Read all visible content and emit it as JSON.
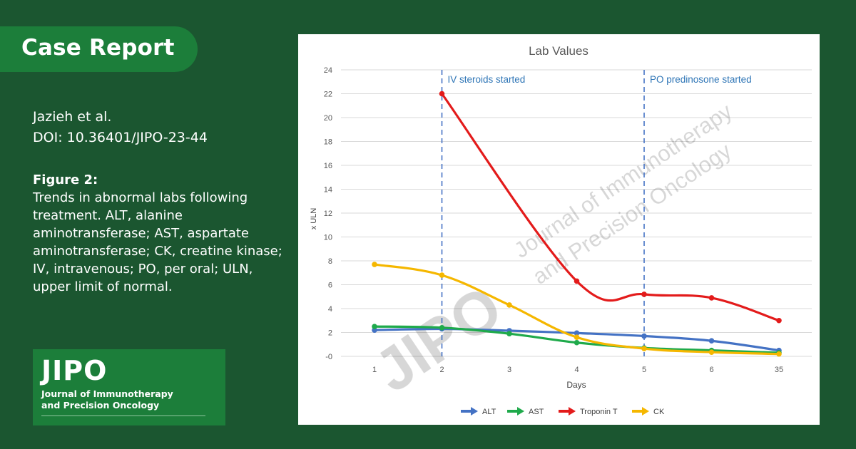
{
  "badge": {
    "label": "Case Report"
  },
  "citation": {
    "authors": "Jazieh et al.",
    "doi": "DOI: 10.36401/JIPO-23-44"
  },
  "figure": {
    "title": "Figure 2:",
    "caption": "Trends in abnormal labs following treatment. ALT, alanine aminotransferase; AST, aspartate aminotransferase; CK, creatine kinase; IV, intravenous; PO, per oral; ULN, upper limit of normal."
  },
  "logo": {
    "acronym": "JIPO",
    "line1": "Journal of Immunotherapy",
    "line2": "and Precision Oncology"
  },
  "watermark": {
    "acronym": "JIPO",
    "line1": "Journal of Immunotherapy",
    "line2": "and Precision Oncology"
  },
  "chart_data": {
    "type": "line",
    "title": "Lab Values",
    "xlabel": "Days",
    "ylabel": "x ULN",
    "categories": [
      "1",
      "2",
      "3",
      "4",
      "5",
      "6",
      "35"
    ],
    "yticks": [
      "-0",
      "2",
      "4",
      "6",
      "8",
      "10",
      "12",
      "14",
      "16",
      "18",
      "20",
      "22",
      "24"
    ],
    "ylim": [
      0,
      24
    ],
    "grid": true,
    "legend_position": "bottom",
    "series": [
      {
        "name": "ALT",
        "color": "#4472c4",
        "values": [
          2.2,
          2.3,
          2.15,
          1.95,
          1.7,
          1.3,
          0.5
        ]
      },
      {
        "name": "AST",
        "color": "#1faa4b",
        "values": [
          2.5,
          2.4,
          1.9,
          1.15,
          0.7,
          0.5,
          0.3
        ]
      },
      {
        "name": "Troponin T",
        "color": "#e31b1b",
        "values": [
          null,
          22.0,
          null,
          6.3,
          5.2,
          4.9,
          3.0
        ]
      },
      {
        "name": "CK",
        "color": "#f5b700",
        "values": [
          7.7,
          6.8,
          4.3,
          1.6,
          0.65,
          0.35,
          0.2
        ]
      }
    ],
    "annotations": [
      {
        "x": "2",
        "text": "IV steroids started"
      },
      {
        "x": "5",
        "text": "PO predinosone started"
      }
    ]
  }
}
